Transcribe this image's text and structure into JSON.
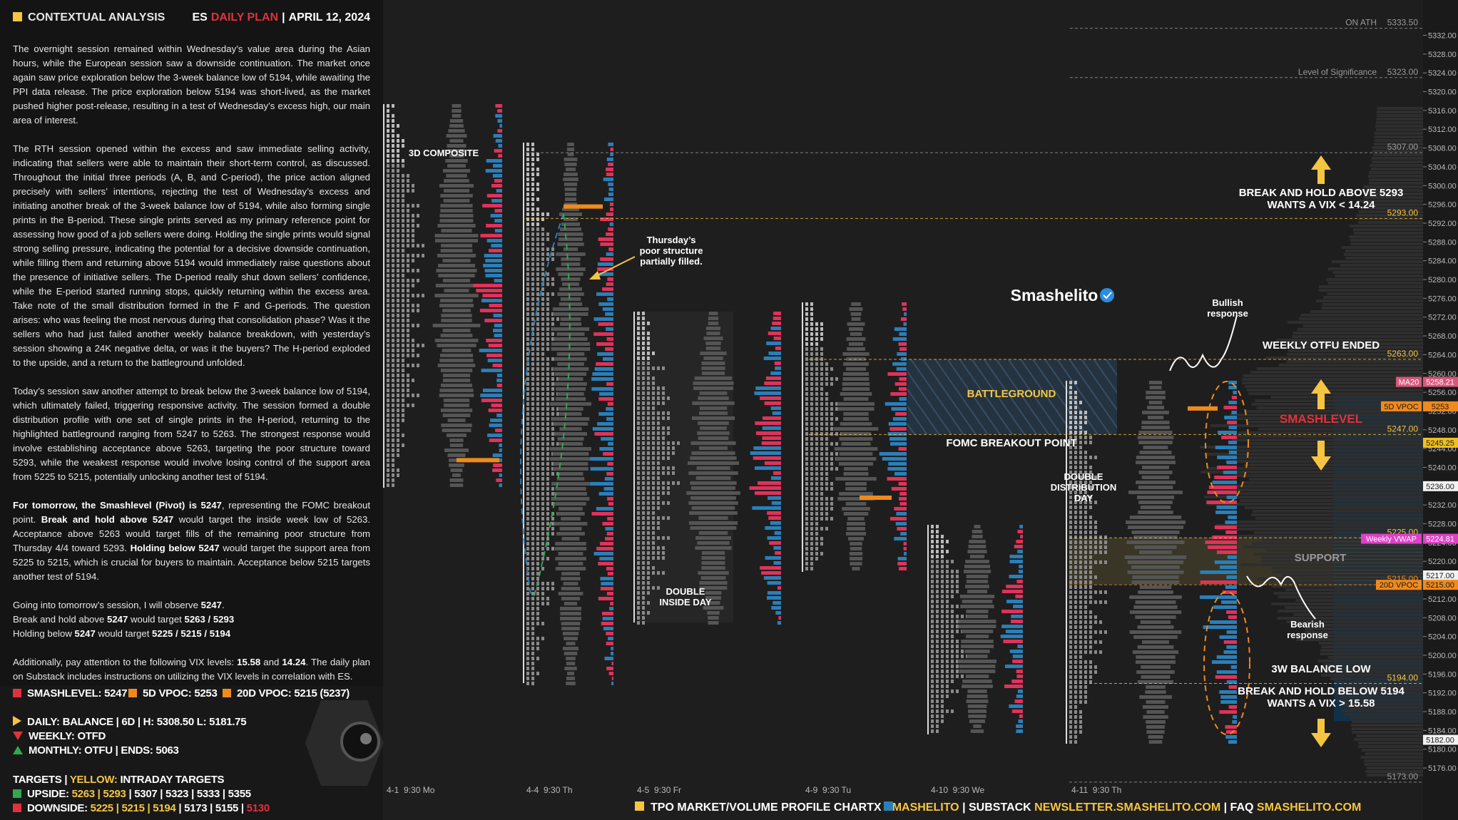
{
  "header": {
    "title": "CONTEXTUAL ANALYSIS",
    "plan": [
      {
        "text": "ES",
        "color": "#ffffff"
      },
      {
        "text": "DAILY PLAN",
        "color": "#e0323c"
      },
      {
        "text": "|",
        "color": "#ffffff"
      },
      {
        "text": "APRIL 12, 2024",
        "color": "#ffffff"
      }
    ]
  },
  "paragraphs": [
    {
      "lines": [
        [
          {
            "text": "The overnight session remained within Wednesday’s value area during the Asian hours, while the European session saw a downside continuation. The market once again saw price exploration below the 3-week balance low of 5194, while awaiting the PPI data release. The price exploration below 5194 was short-lived, as the market pushed higher post-release, resulting in a test of Wednesday’s excess high, our main area of interest."
          }
        ]
      ]
    },
    {
      "lines": [
        [
          {
            "text": "The RTH session opened within the excess and saw immediate selling activity, indicating that sellers were able to maintain their short-term control, as discussed. Throughout the initial three periods (A, B, and C-period), the price action aligned precisely with sellers’ intentions, rejecting the test of Wednesday’s excess and initiating another break of the 3-week balance low of 5194, while also forming single prints in the B-period. These single prints served as my primary reference point for assessing how good of a job sellers were doing. Holding the single prints would signal strong selling pressure, indicating the potential for a decisive downside continuation, while filling them and returning above 5194 would immediately raise questions about the presence of initiative sellers. The D-period really shut down sellers’ confidence, while the E-period started running stops, quickly returning within the excess area. Take note of the small distribution formed in the F and G-periods. The question arises: who was feeling the most nervous during that consolidation phase? Was it the sellers who had just failed another weekly balance breakdown, with yesterday’s session showing a 24K negative delta, or was it the buyers? The H-period exploded to the upside, and a return to the battleground unfolded."
          }
        ]
      ]
    },
    {
      "lines": [
        [
          {
            "text": "Today’s session saw another attempt to break below the 3-week balance low of 5194, which ultimately failed, triggering responsive activity. The session formed a double distribution profile with one set of single prints in the H-period, returning to the highlighted battleground ranging from 5247 to 5263. The strongest response would involve establishing acceptance above 5263, targeting the poor structure toward 5293, while the weakest response would involve losing control of the support area from 5225 to 5215, potentially unlocking another test of 5194."
          }
        ]
      ]
    },
    {
      "lines": [
        [
          {
            "text": "For tomorrow, the Smashlevel (Pivot) is 5247",
            "bold": true
          },
          {
            "text": ", representing the FOMC breakout point. "
          },
          {
            "text": "Break and hold above 5247",
            "bold": true
          },
          {
            "text": " would target the inside week low of 5263. Acceptance above 5263 would target fills of the remaining poor structure from Thursday 4/4 toward 5293. "
          },
          {
            "text": "Holding below 5247",
            "bold": true
          },
          {
            "text": " would target the support area from 5225 to 5215, which is crucial for buyers to maintain. Acceptance below 5215 targets another test of 5194."
          }
        ]
      ]
    },
    {
      "lines": [
        [
          {
            "text": "Going into tomorrow’s session, I will observe "
          },
          {
            "text": "5247",
            "bold": true
          },
          {
            "text": "."
          }
        ],
        [
          {
            "text": "Break and hold above "
          },
          {
            "text": "5247",
            "bold": true
          },
          {
            "text": " would target "
          },
          {
            "text": "5263 / 5293",
            "bold": true
          }
        ],
        [
          {
            "text": "Holding below "
          },
          {
            "text": "5247",
            "bold": true
          },
          {
            "text": " would target "
          },
          {
            "text": "5225 / 5215 / 5194",
            "bold": true
          }
        ]
      ]
    },
    {
      "lines": [
        [
          {
            "text": "Additionally, pay attention to the following VIX levels: "
          },
          {
            "text": "15.58",
            "bold": true
          },
          {
            "text": " and "
          },
          {
            "text": "14.24",
            "bold": true
          },
          {
            "text": ". The daily plan on Substack includes instructions on utilizing the VIX levels in correlation with ES."
          }
        ]
      ]
    }
  ],
  "stats": {
    "row": [
      {
        "marker": "square",
        "color": "#e0323c",
        "text": "SMASHLEVEL: 5247"
      },
      {
        "marker": "square",
        "color": "#f08a1c",
        "text": "5D VPOC: 5253"
      },
      {
        "marker": "square",
        "color": "#f08a1c",
        "text": "20D VPOC: 5215 (5237)"
      }
    ],
    "context": [
      {
        "marker": "tri-right",
        "color": "#f5c542",
        "text": "DAILY: BALANCE | 6D | H: 5308.50 L: 5181.75"
      },
      {
        "marker": "tri-down",
        "color": "#e0323c",
        "text": "WEEKLY: OTFD"
      },
      {
        "marker": "tri-up",
        "color": "#2fa84f",
        "text": "MONTHLY: OTFU | ENDS: 5063"
      }
    ],
    "targets_heading": [
      {
        "text": "TARGETS | ",
        "color": "#ffffff"
      },
      {
        "text": "YELLOW:",
        "color": "#f5c542"
      },
      {
        "text": " INTRADAY TARGETS",
        "color": "#ffffff"
      }
    ],
    "targets": [
      {
        "marker": "square",
        "color": "#2fa84f",
        "segments": [
          {
            "text": "UPSIDE: ",
            "color": "#ffffff"
          },
          {
            "text": "5263 | 5293",
            "color": "#f5c542"
          },
          {
            "text": " | 5307 | 5323 | 5333 | 5355",
            "color": "#ffffff"
          }
        ]
      },
      {
        "marker": "square",
        "color": "#e0323c",
        "segments": [
          {
            "text": "DOWNSIDE: ",
            "color": "#ffffff"
          },
          {
            "text": "5225 | 5215 | 5194",
            "color": "#f5c542"
          },
          {
            "text": " | 5173 | 5155 | ",
            "color": "#ffffff"
          },
          {
            "text": "5130",
            "color": "#e0323c"
          }
        ]
      }
    ]
  },
  "price_axis": [
    "5332.00",
    "5328.00",
    "5324.00",
    "5320.00",
    "5316.00",
    "5312.00",
    "5308.00",
    "5304.00",
    "5300.00",
    "5296.00",
    "5292.00",
    "5288.00",
    "5284.00",
    "5280.00",
    "5276.00",
    "5272.00",
    "5268.00",
    "5264.00",
    "5260.00",
    "5256.00",
    "5252.00",
    "5248.00",
    "5244.00",
    "5240.00",
    "5236.00",
    "5232.00",
    "5228.00",
    "5224.00",
    "5220.00",
    "5216.00",
    "5212.00",
    "5208.00",
    "5204.00",
    "5200.00",
    "5196.00",
    "5192.00",
    "5188.00",
    "5184.00",
    "5180.00",
    "5176.00"
  ],
  "levels": [
    {
      "name": "ON ATH",
      "price": "5333.50",
      "color": "#9a9a9a"
    },
    {
      "name": "Level of Significance",
      "price": "5323.00",
      "color": "#9a9a9a"
    },
    {
      "price": "5307.00",
      "color": "#9a9a9a"
    },
    {
      "price": "5293.00",
      "color": "#f5c542"
    },
    {
      "price": "5263.00",
      "color": "#f5c542"
    },
    {
      "price": "5247.00",
      "color": "#f5c542"
    },
    {
      "price": "5225.00",
      "color": "#f5c542"
    },
    {
      "price": "5215.00",
      "color": "#f08a1c"
    },
    {
      "price": "5194.00",
      "color": "#f5c542"
    },
    {
      "price": "5173.00",
      "color": "#9a9a9a"
    }
  ],
  "axis_tags": [
    {
      "name": "MA20",
      "price": "5258.21",
      "bg": "#d9577a",
      "fg": "#ffffff"
    },
    {
      "name": "5D VPOC",
      "price": "5253",
      "bg": "#f08a1c",
      "fg": "#1a1a1a"
    },
    {
      "price": "5245.25",
      "bg": "#f0c020",
      "fg": "#1a1a1a"
    },
    {
      "price": "5236.00",
      "bg": "#f2f2f2",
      "fg": "#1a1a1a"
    },
    {
      "name": "Weekly VWAP",
      "price": "5224.81",
      "bg": "#e040c8",
      "fg": "#ffffff"
    },
    {
      "price": "5217.00",
      "bg": "#f2f2f2",
      "fg": "#1a1a1a"
    },
    {
      "name": "20D VPOC",
      "price": "5215.00",
      "bg": "#f08a1c",
      "fg": "#1a1a1a"
    },
    {
      "price": "5182.00",
      "bg": "#f2f2f2",
      "fg": "#1a1a1a"
    }
  ],
  "annotations": [
    {
      "lines": [
        "3D COMPOSITE"
      ],
      "color": "#ffffff"
    },
    {
      "lines": [
        "Thursday’s",
        "poor structure",
        "partially filled."
      ],
      "color": "#ffffff"
    },
    {
      "lines": [
        "DOUBLE",
        "INSIDE DAY"
      ],
      "color": "#ffffff"
    },
    {
      "lines": [
        "BATTLEGROUND"
      ],
      "color": "#f5c542"
    },
    {
      "lines": [
        "FOMC BREAKOUT POINT"
      ],
      "color": "#ffffff"
    },
    {
      "lines": [
        "DOUBLE",
        "DISTRIBUTION",
        "DAY"
      ],
      "color": "#ffffff"
    },
    {
      "lines": [
        "Bullish",
        "response"
      ],
      "color": "#ffffff"
    },
    {
      "lines": [
        "WEEKLY OTFU ENDED"
      ],
      "color": "#ffffff"
    },
    {
      "lines": [
        "SMASHLEVEL"
      ],
      "color": "#e0323c"
    },
    {
      "lines": [
        "BREAK AND HOLD ABOVE 5293",
        "WANTS A VIX < 14.24"
      ],
      "color": "#ffffff"
    },
    {
      "lines": [
        "SUPPORT"
      ],
      "color": "#9a9a9a"
    },
    {
      "lines": [
        "Bearish",
        "response"
      ],
      "color": "#ffffff"
    },
    {
      "lines": [
        "3W BALANCE LOW"
      ],
      "color": "#ffffff"
    },
    {
      "lines": [
        "BREAK AND HOLD BELOW 5194",
        "WANTS A VIX > 15.58"
      ],
      "color": "#ffffff"
    }
  ],
  "brand": "Smashelito",
  "sessions": [
    "4-1  9:30 Mo",
    "4-4  9:30 Th",
    "4-5  9:30 Fr",
    "4-9  9:30 Tu",
    "4-10  9:30 We",
    "4-11  9:30 Th"
  ],
  "footer": [
    {
      "text": "TPO MARKET/VOLUME PROFILE CHART",
      "color": "#ffffff"
    },
    {
      "text": "X ",
      "color": "#ffffff"
    },
    {
      "text": "SMASHELITO",
      "color": "#f5c542"
    },
    {
      "text": " | SUBSTACK ",
      "color": "#ffffff"
    },
    {
      "text": "NEWSLETTER.SMASHELITO.COM",
      "color": "#f5c542"
    },
    {
      "text": " | FAQ ",
      "color": "#ffffff"
    },
    {
      "text": "SMASHELITO.COM",
      "color": "#f5c542"
    }
  ]
}
